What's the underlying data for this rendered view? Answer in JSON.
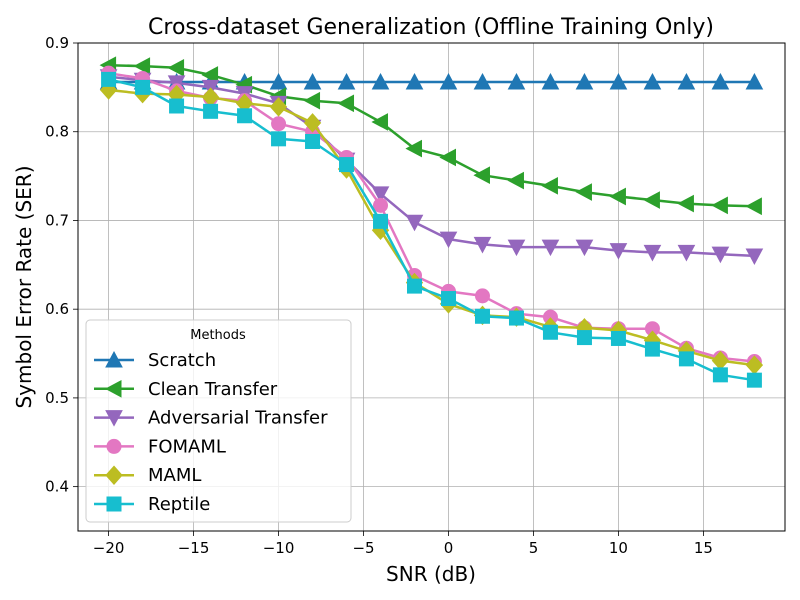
{
  "chart_data": {
    "type": "line",
    "title": "Cross-dataset Generalization (Offline Training Only)",
    "xlabel": "SNR (dB)",
    "ylabel": "Symbol Error Rate (SER)",
    "xlim": [
      -21.8,
      19.8
    ],
    "ylim": [
      0.35,
      0.9
    ],
    "xticks": [
      -20,
      -15,
      -10,
      -5,
      0,
      5,
      10,
      15
    ],
    "xtick_labels": [
      "−20",
      "−15",
      "−10",
      "−5",
      "0",
      "5",
      "10",
      "15"
    ],
    "yticks": [
      0.4,
      0.5,
      0.6,
      0.7,
      0.8,
      0.9
    ],
    "ytick_labels": [
      "0.4",
      "0.5",
      "0.6",
      "0.7",
      "0.8",
      "0.9"
    ],
    "grid": true,
    "legend_title": "Methods",
    "legend_position": "lower-left",
    "x": [
      -20,
      -18,
      -16,
      -14,
      -12,
      -10,
      -8,
      -6,
      -4,
      -2,
      0,
      2,
      4,
      6,
      8,
      10,
      12,
      14,
      16,
      18
    ],
    "series": [
      {
        "name": "Scratch",
        "color": "#1f77b4",
        "marker": "triangle-up",
        "values": [
          0.856,
          0.856,
          0.856,
          0.856,
          0.856,
          0.856,
          0.856,
          0.856,
          0.856,
          0.856,
          0.856,
          0.856,
          0.856,
          0.856,
          0.856,
          0.856,
          0.856,
          0.856,
          0.856,
          0.856
        ]
      },
      {
        "name": "Clean Transfer",
        "color": "#2ca02c",
        "marker": "triangle-left",
        "values": [
          0.875,
          0.874,
          0.872,
          0.864,
          0.853,
          0.84,
          0.835,
          0.832,
          0.811,
          0.781,
          0.771,
          0.751,
          0.745,
          0.739,
          0.732,
          0.727,
          0.723,
          0.719,
          0.717,
          0.716
        ]
      },
      {
        "name": "Adversarial Transfer",
        "color": "#9467bd",
        "marker": "triangle-down",
        "values": [
          0.862,
          0.858,
          0.855,
          0.85,
          0.843,
          0.832,
          0.805,
          0.768,
          0.73,
          0.698,
          0.679,
          0.673,
          0.67,
          0.67,
          0.67,
          0.666,
          0.664,
          0.664,
          0.662,
          0.66
        ]
      },
      {
        "name": "FOMAML",
        "color": "#e377c2",
        "marker": "circle",
        "values": [
          0.866,
          0.86,
          0.846,
          0.838,
          0.835,
          0.809,
          0.8,
          0.771,
          0.717,
          0.638,
          0.62,
          0.615,
          0.595,
          0.591,
          0.579,
          0.578,
          0.578,
          0.556,
          0.545,
          0.541
        ]
      },
      {
        "name": "MAML",
        "color": "#bcbd22",
        "marker": "diamond",
        "values": [
          0.847,
          0.843,
          0.842,
          0.839,
          0.832,
          0.828,
          0.81,
          0.758,
          0.689,
          0.63,
          0.606,
          0.593,
          0.591,
          0.58,
          0.579,
          0.576,
          0.565,
          0.553,
          0.542,
          0.537
        ]
      },
      {
        "name": "Reptile",
        "color": "#17becf",
        "marker": "square",
        "values": [
          0.859,
          0.85,
          0.829,
          0.823,
          0.818,
          0.792,
          0.789,
          0.763,
          0.699,
          0.626,
          0.612,
          0.592,
          0.59,
          0.574,
          0.568,
          0.567,
          0.555,
          0.544,
          0.526,
          0.52
        ]
      }
    ]
  }
}
